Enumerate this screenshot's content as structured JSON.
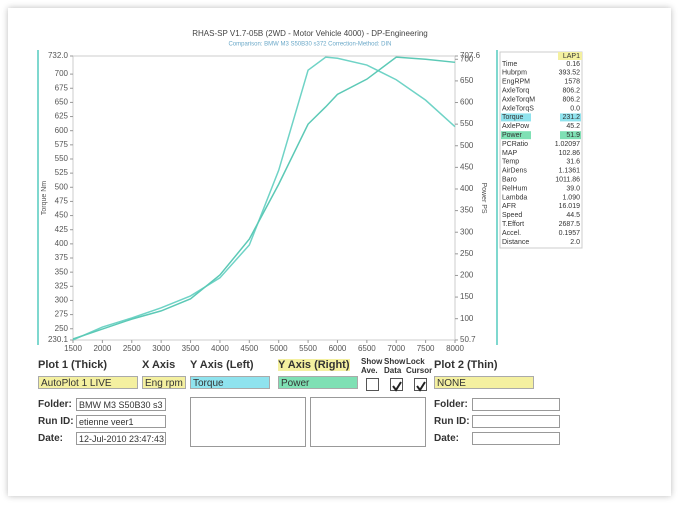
{
  "chart_data": {
    "type": "line",
    "title": "RHAS-SP V1.7-05B   (2WD - Motor Vehicle 4000) - DP-Engineering",
    "subtitle": "Comparison: BMW M3 S50B30 s372   Correction-Method: DIN",
    "ylabel": "Torque Nm",
    "y2label": "Power PS",
    "x": [
      1500,
      2000,
      2500,
      3000,
      3500,
      4000,
      4500,
      5000,
      5500,
      5800,
      6000,
      6500,
      7000,
      7500,
      8000
    ],
    "series": [
      {
        "name": "Torque",
        "color": "#6fd3c6",
        "values": [
          230.2,
          253,
          269,
          287,
          308,
          340,
          398,
          530,
          707,
          730,
          728,
          716,
          690,
          654,
          607
        ]
      },
      {
        "name": "Power",
        "color": "#5cc9b6",
        "axis": "y2",
        "values": [
          53,
          76,
          99,
          118,
          146,
          201,
          284,
          411,
          550,
          590,
          619,
          654,
          705,
          700,
          693
        ]
      }
    ],
    "xlim": [
      1500,
      8000
    ],
    "xticks": [
      1500,
      2000,
      2500,
      3000,
      3500,
      4000,
      4500,
      5000,
      5500,
      6000,
      6500,
      7000,
      7500,
      8000
    ],
    "ylim": [
      230.1,
      732
    ],
    "yticks": [
      230.1,
      250,
      275,
      300,
      325,
      350,
      375,
      400,
      425,
      450,
      475,
      500,
      525,
      550,
      575,
      600,
      625,
      650,
      675,
      700,
      {
        "value": 732,
        "label": "732.0"
      }
    ],
    "y2lim": [
      50.7,
      707.6
    ],
    "y2ticks": [
      50.7,
      100,
      150,
      200,
      250,
      300,
      350,
      400,
      450,
      500,
      550,
      600,
      650,
      700,
      707.6
    ]
  },
  "readout": {
    "header": "LAP1",
    "rows": [
      {
        "name": "Time",
        "value": "0.16"
      },
      {
        "name": "Hubrpm",
        "value": "393.52"
      },
      {
        "name": "EngRPM",
        "value": "1578"
      },
      {
        "name": "AxleTorq",
        "value": "806.2"
      },
      {
        "name": "AxleTorqM",
        "value": "806.2"
      },
      {
        "name": "AxleTorqS",
        "value": "0.0"
      },
      {
        "name": "Torque",
        "value": "231.2",
        "highlight": "#8fe3ee"
      },
      {
        "name": "AxlePow",
        "value": "45.2"
      },
      {
        "name": "Power",
        "value": "51.9",
        "highlight": "#7fe0b4"
      },
      {
        "name": "PCRatio",
        "value": "1.02097"
      },
      {
        "name": "MAP",
        "value": "102.86"
      },
      {
        "name": "Temp",
        "value": "31.6"
      },
      {
        "name": "AirDens",
        "value": "1.1361"
      },
      {
        "name": "Baro",
        "value": "1011.86"
      },
      {
        "name": "RelHum",
        "value": "39.0"
      },
      {
        "name": "Lambda",
        "value": "1.090"
      },
      {
        "name": "AFR",
        "value": "16.019"
      },
      {
        "name": "Speed",
        "value": "44.5"
      },
      {
        "name": "T.Effort",
        "value": "2687.5"
      },
      {
        "name": "Accel.",
        "value": "0.1957"
      },
      {
        "name": "Distance",
        "value": "2.0"
      }
    ]
  },
  "controls": {
    "headers": [
      "Plot 1 (Thick)",
      "X Axis",
      "Y Axis (Left)",
      "Y Axis (Right)",
      "Show Ave.",
      "Show Data",
      "Lock Cursor",
      "Plot 2 (Thin)"
    ],
    "header_highlight": "#f4f0a0",
    "selects": [
      {
        "text": "AutoPlot 1 LIVE",
        "color": "#f4f0a0"
      },
      {
        "text": "Eng rpm",
        "color": "#f4f0a0"
      },
      {
        "color": "#8fe3ee"
      },
      {
        "color": "#7fe0b4"
      },
      {
        "text": "NONE",
        "color": "#f4f0a0"
      }
    ],
    "checkboxes": [
      false,
      true,
      true
    ],
    "fields": [
      {
        "label": "Folder:",
        "value": "BMW M3 S50B30 s3"
      },
      {
        "label": "Run ID:",
        "value": "etienne veer1"
      },
      {
        "label": "Date:",
        "value": "12-Jul-2010  23:47:43"
      }
    ],
    "right_fields": [
      "Folder:",
      "Run ID:",
      "Date:"
    ]
  }
}
